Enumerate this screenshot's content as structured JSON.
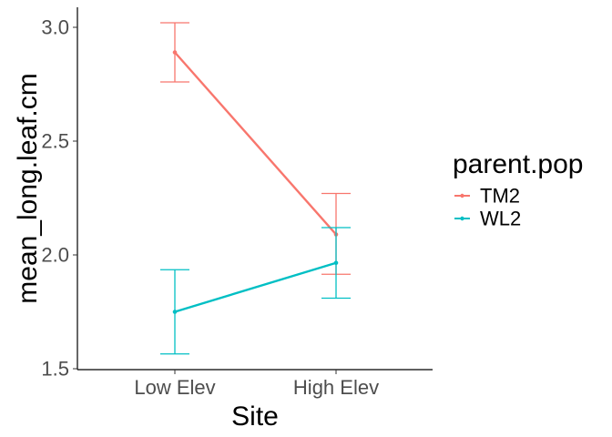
{
  "chart_data": {
    "type": "line",
    "xlabel": "Site",
    "ylabel": "mean_long.leaf.cm",
    "categories": [
      "Low Elev",
      "High Elev"
    ],
    "ylim": [
      1.5,
      3.1
    ],
    "yticks": [
      "1.5",
      "2.0",
      "2.5",
      "3.0"
    ],
    "legend_title": "parent.pop",
    "legend_position": "right",
    "grid": false,
    "series": [
      {
        "name": "TM2",
        "color": "#F8766D",
        "values": [
          2.89,
          2.09
        ],
        "lower": [
          2.76,
          1.915
        ],
        "upper": [
          3.02,
          2.27
        ]
      },
      {
        "name": "WL2",
        "color": "#00BFC4",
        "values": [
          1.75,
          1.965
        ],
        "lower": [
          1.565,
          1.81
        ],
        "upper": [
          1.935,
          2.12
        ]
      }
    ]
  }
}
